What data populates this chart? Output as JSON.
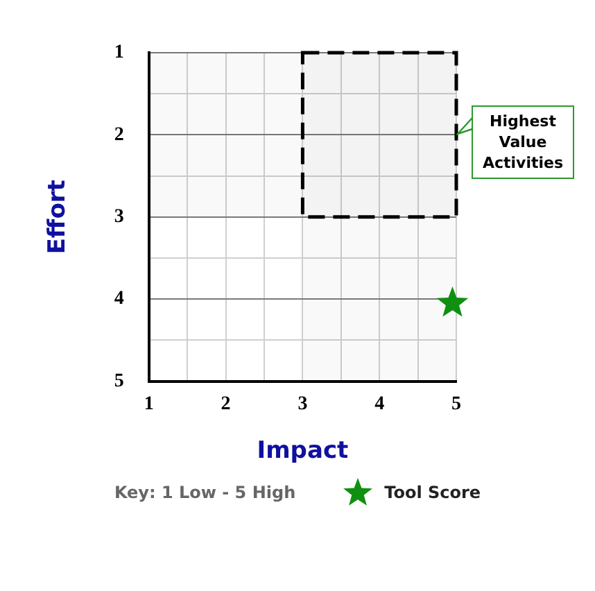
{
  "chart_data": {
    "type": "scatter",
    "xlabel": "Impact",
    "ylabel": "Effort",
    "series": [
      {
        "name": "Tool Score",
        "color": "#109010",
        "x": [
          4.95
        ],
        "values": [
          4.05
        ]
      }
    ],
    "xlim": [
      1,
      5
    ],
    "ylim": [
      5,
      1
    ],
    "xticks": [
      1,
      {
        "value": 1.5,
        "label": null
      },
      2,
      {
        "value": 2.5,
        "label": null
      },
      3,
      {
        "value": 3.5,
        "label": null
      },
      4,
      {
        "value": 4.5,
        "label": null
      },
      5
    ],
    "yticks": [
      1,
      {
        "value": 1.5,
        "label": null
      },
      2,
      {
        "value": 2.5,
        "label": null
      },
      3,
      {
        "value": 3.5,
        "label": null
      },
      4,
      {
        "value": 4.5,
        "label": null
      },
      5
    ],
    "grid": true,
    "marker": "star",
    "legend": "bottom",
    "bands": [
      {
        "axis": "x",
        "from": 3,
        "to": 5,
        "label": "Highest Value Activities"
      },
      {
        "axis": "y",
        "from": 1,
        "to": 3
      }
    ],
    "annotations": [
      "Key: 1 Low - 5 High"
    ]
  }
}
